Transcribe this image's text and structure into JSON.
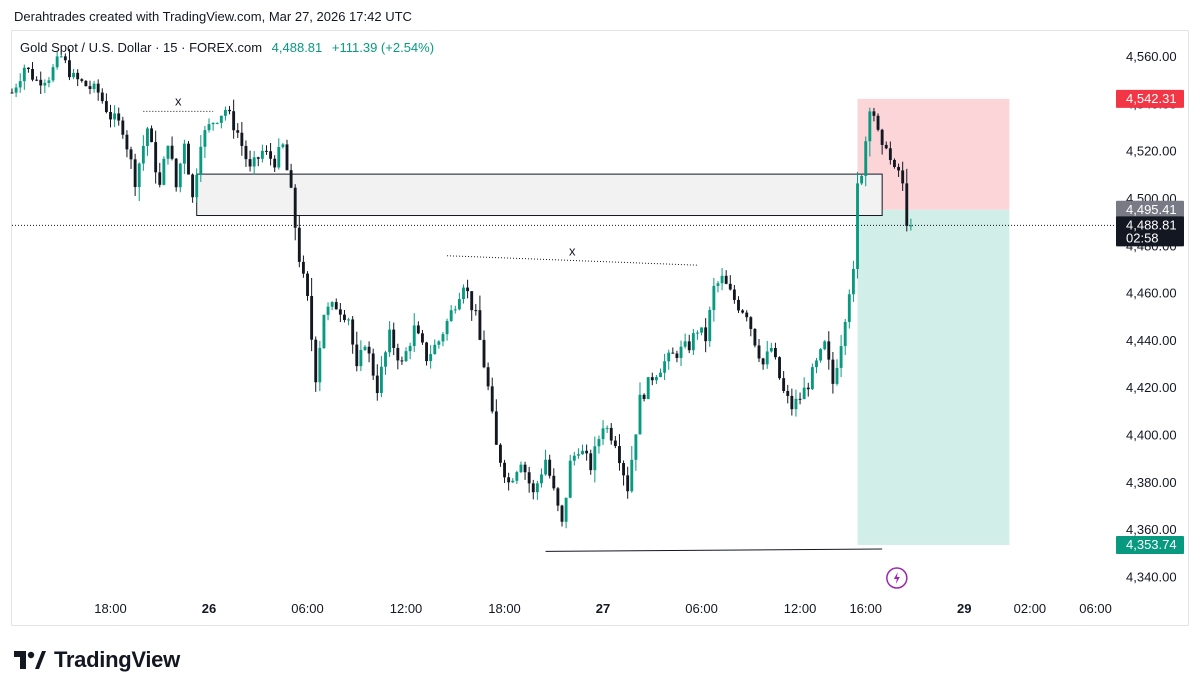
{
  "header": {
    "credit": "Derahtrades created with TradingView.com, Mar 27, 2026 17:42 UTC"
  },
  "symbol": {
    "name": "Gold Spot / U.S. Dollar · 15 · FOREX.com",
    "last": "4,488.81",
    "change": "+111.39 (+2.54%)"
  },
  "footer": {
    "brand": "TradingView"
  },
  "colors": {
    "up": "#089981",
    "down": "#131722",
    "stop": "#f23645",
    "target": "#089981",
    "stop_zone": "#fbd5d8",
    "target_zone": "#d2eee8",
    "zone_fill": "#f2f2f2"
  },
  "chart_data": {
    "type": "candlestick",
    "title": "Gold Spot / U.S. Dollar · 15 · FOREX.com",
    "y_range": [
      4333,
      4571
    ],
    "y_ticks": [
      {
        "v": 4560,
        "label": "4,560.00"
      },
      {
        "v": 4540,
        "label": "4,540.00"
      },
      {
        "v": 4520,
        "label": "4,520.00"
      },
      {
        "v": 4500,
        "label": "4,500.00"
      },
      {
        "v": 4480,
        "label": "4,480.00"
      },
      {
        "v": 4460,
        "label": "4,460.00"
      },
      {
        "v": 4440,
        "label": "4,440.00"
      },
      {
        "v": 4420,
        "label": "4,420.00"
      },
      {
        "v": 4400,
        "label": "4,400.00"
      },
      {
        "v": 4380,
        "label": "4,380.00"
      },
      {
        "v": 4360,
        "label": "4,360.00"
      },
      {
        "v": 4340,
        "label": "4,340.00"
      }
    ],
    "x_range": [
      0,
      268
    ],
    "x_ticks": [
      {
        "t": 24,
        "label": "18:00",
        "bold": false
      },
      {
        "t": 48,
        "label": "26",
        "bold": true
      },
      {
        "t": 72,
        "label": "06:00",
        "bold": false
      },
      {
        "t": 96,
        "label": "12:00",
        "bold": false
      },
      {
        "t": 120,
        "label": "18:00",
        "bold": false
      },
      {
        "t": 144,
        "label": "27",
        "bold": true
      },
      {
        "t": 168,
        "label": "06:00",
        "bold": false
      },
      {
        "t": 192,
        "label": "12:00",
        "bold": false
      },
      {
        "t": 208,
        "label": "16:00",
        "bold": false
      },
      {
        "t": 232,
        "label": "29",
        "bold": true
      },
      {
        "t": 248,
        "label": "02:00",
        "bold": false
      },
      {
        "t": 264,
        "label": "06:00",
        "bold": false
      }
    ],
    "anchors": [
      [
        0,
        4545
      ],
      [
        3,
        4556
      ],
      [
        6,
        4550
      ],
      [
        9,
        4552
      ],
      [
        12,
        4560
      ],
      [
        15,
        4551
      ],
      [
        18,
        4548
      ],
      [
        21,
        4545
      ],
      [
        24,
        4535
      ],
      [
        27,
        4530
      ],
      [
        30,
        4508
      ],
      [
        33,
        4530
      ],
      [
        36,
        4505
      ],
      [
        38,
        4525
      ],
      [
        40,
        4505
      ],
      [
        42,
        4525
      ],
      [
        44,
        4500
      ],
      [
        46,
        4525
      ],
      [
        49,
        4533
      ],
      [
        52,
        4538
      ],
      [
        55,
        4528
      ],
      [
        58,
        4512
      ],
      [
        61,
        4520
      ],
      [
        64,
        4516
      ],
      [
        66,
        4522
      ],
      [
        68,
        4502
      ],
      [
        70,
        4475
      ],
      [
        72,
        4457
      ],
      [
        74,
        4425
      ],
      [
        76,
        4452
      ],
      [
        79,
        4455
      ],
      [
        82,
        4450
      ],
      [
        84,
        4427
      ],
      [
        86,
        4440
      ],
      [
        89,
        4420
      ],
      [
        92,
        4442
      ],
      [
        95,
        4430
      ],
      [
        98,
        4445
      ],
      [
        101,
        4433
      ],
      [
        104,
        4440
      ],
      [
        107,
        4452
      ],
      [
        110,
        4465
      ],
      [
        113,
        4450
      ],
      [
        116,
        4420
      ],
      [
        118,
        4395
      ],
      [
        121,
        4380
      ],
      [
        124,
        4390
      ],
      [
        127,
        4375
      ],
      [
        130,
        4390
      ],
      [
        132,
        4376
      ],
      [
        134,
        4362
      ],
      [
        136,
        4388
      ],
      [
        138,
        4395
      ],
      [
        141,
        4387
      ],
      [
        144,
        4405
      ],
      [
        147,
        4398
      ],
      [
        150,
        4378
      ],
      [
        153,
        4415
      ],
      [
        156,
        4425
      ],
      [
        159,
        4431
      ],
      [
        162,
        4435
      ],
      [
        165,
        4438
      ],
      [
        167,
        4445
      ],
      [
        169,
        4441
      ],
      [
        171,
        4462
      ],
      [
        173,
        4466
      ],
      [
        175,
        4460
      ],
      [
        177,
        4455
      ],
      [
        179,
        4452
      ],
      [
        181,
        4440
      ],
      [
        183,
        4430
      ],
      [
        185,
        4437
      ],
      [
        188,
        4418
      ],
      [
        190,
        4412
      ],
      [
        192,
        4416
      ],
      [
        194,
        4422
      ],
      [
        196,
        4430
      ],
      [
        198,
        4438
      ],
      [
        200,
        4422
      ],
      [
        202,
        4440
      ],
      [
        204,
        4462
      ],
      [
        205,
        4468
      ],
      [
        206,
        4505
      ],
      [
        207,
        4512
      ],
      [
        208,
        4525
      ],
      [
        209,
        4540
      ],
      [
        210,
        4536
      ],
      [
        211,
        4527
      ],
      [
        212,
        4520
      ],
      [
        213,
        4524
      ],
      [
        214,
        4516
      ],
      [
        215,
        4511
      ],
      [
        216,
        4512
      ],
      [
        217,
        4505
      ],
      [
        218,
        4491
      ],
      [
        219,
        4489
      ]
    ],
    "candles_count": 220,
    "annotations": {
      "supply_zone": {
        "t0": 45,
        "t1": 212,
        "top": 4510.5,
        "bottom": 4493
      },
      "swing_top_left": {
        "t0": 32,
        "t1": 49,
        "price": 4537,
        "label": "x"
      },
      "swing_top_mid": {
        "t0": 106,
        "t1": 167,
        "p0": 4476,
        "p1": 4472,
        "label": "x"
      },
      "swing_low": {
        "t0": 130,
        "t1": 212,
        "p0": 4351,
        "p1": 4352
      },
      "position": {
        "t0": 206,
        "t1": 243,
        "entry": 4495.41,
        "stop": 4542.31,
        "target": 4353.74
      }
    },
    "price_tags": [
      {
        "v": 4542.31,
        "label": "4,542.31",
        "kind": "stop"
      },
      {
        "v": 4495.41,
        "label": "4,495.41",
        "kind": "entry"
      },
      {
        "v": 4488.81,
        "label": "4,488.81",
        "kind": "last",
        "sub": "02:58"
      },
      {
        "v": 4353.74,
        "label": "4,353.74",
        "kind": "target"
      }
    ],
    "last_price": 4488.81
  }
}
